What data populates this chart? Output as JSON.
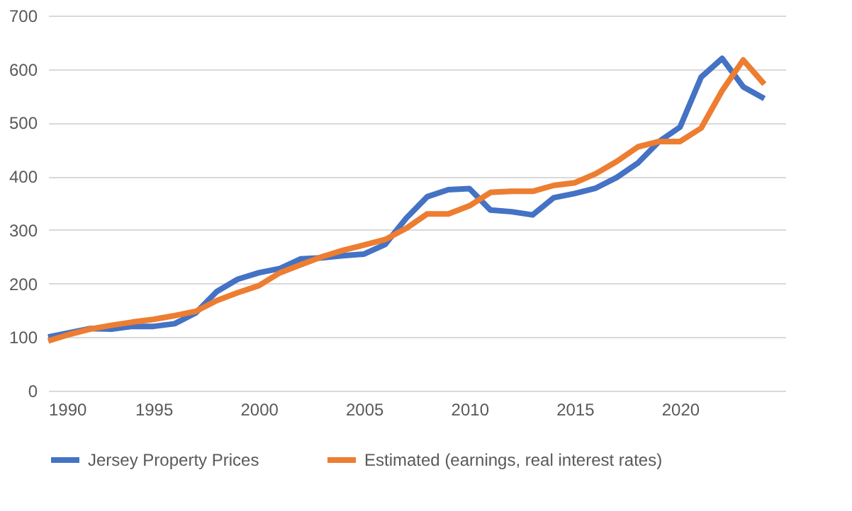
{
  "chart_data": {
    "type": "line",
    "x": [
      1990,
      1991,
      1992,
      1993,
      1994,
      1995,
      1996,
      1997,
      1998,
      1999,
      2000,
      2001,
      2002,
      2003,
      2004,
      2005,
      2006,
      2007,
      2008,
      2009,
      2010,
      2011,
      2012,
      2013,
      2014,
      2015,
      2016,
      2017,
      2018,
      2019,
      2020,
      2021,
      2022,
      2023,
      2024
    ],
    "series": [
      {
        "name": "Jersey Property Prices",
        "color": "#4472c4",
        "values": [
          100,
          108,
          116,
          115,
          120,
          120,
          125,
          145,
          185,
          208,
          220,
          228,
          246,
          248,
          252,
          255,
          273,
          322,
          362,
          375,
          377,
          337,
          334,
          328,
          360,
          368,
          378,
          398,
          425,
          465,
          492,
          585,
          620,
          567,
          545
        ]
      },
      {
        "name": "Estimated (earnings, real interest rates)",
        "color": "#ed7d31",
        "values": [
          93,
          105,
          115,
          122,
          128,
          133,
          140,
          148,
          168,
          183,
          196,
          220,
          235,
          250,
          262,
          272,
          282,
          303,
          330,
          330,
          345,
          370,
          372,
          372,
          383,
          388,
          405,
          428,
          455,
          465,
          465,
          490,
          560,
          617,
          572
        ]
      }
    ],
    "xlim": [
      1990,
      2025
    ],
    "xticks": [
      1990,
      1995,
      2000,
      2005,
      2010,
      2015,
      2020
    ],
    "ylim": [
      0,
      700
    ],
    "yticks": [
      0,
      100,
      200,
      300,
      400,
      500,
      600,
      700
    ],
    "grid": "y",
    "legend": "bottom",
    "marker": "none",
    "line_style": "solid"
  }
}
